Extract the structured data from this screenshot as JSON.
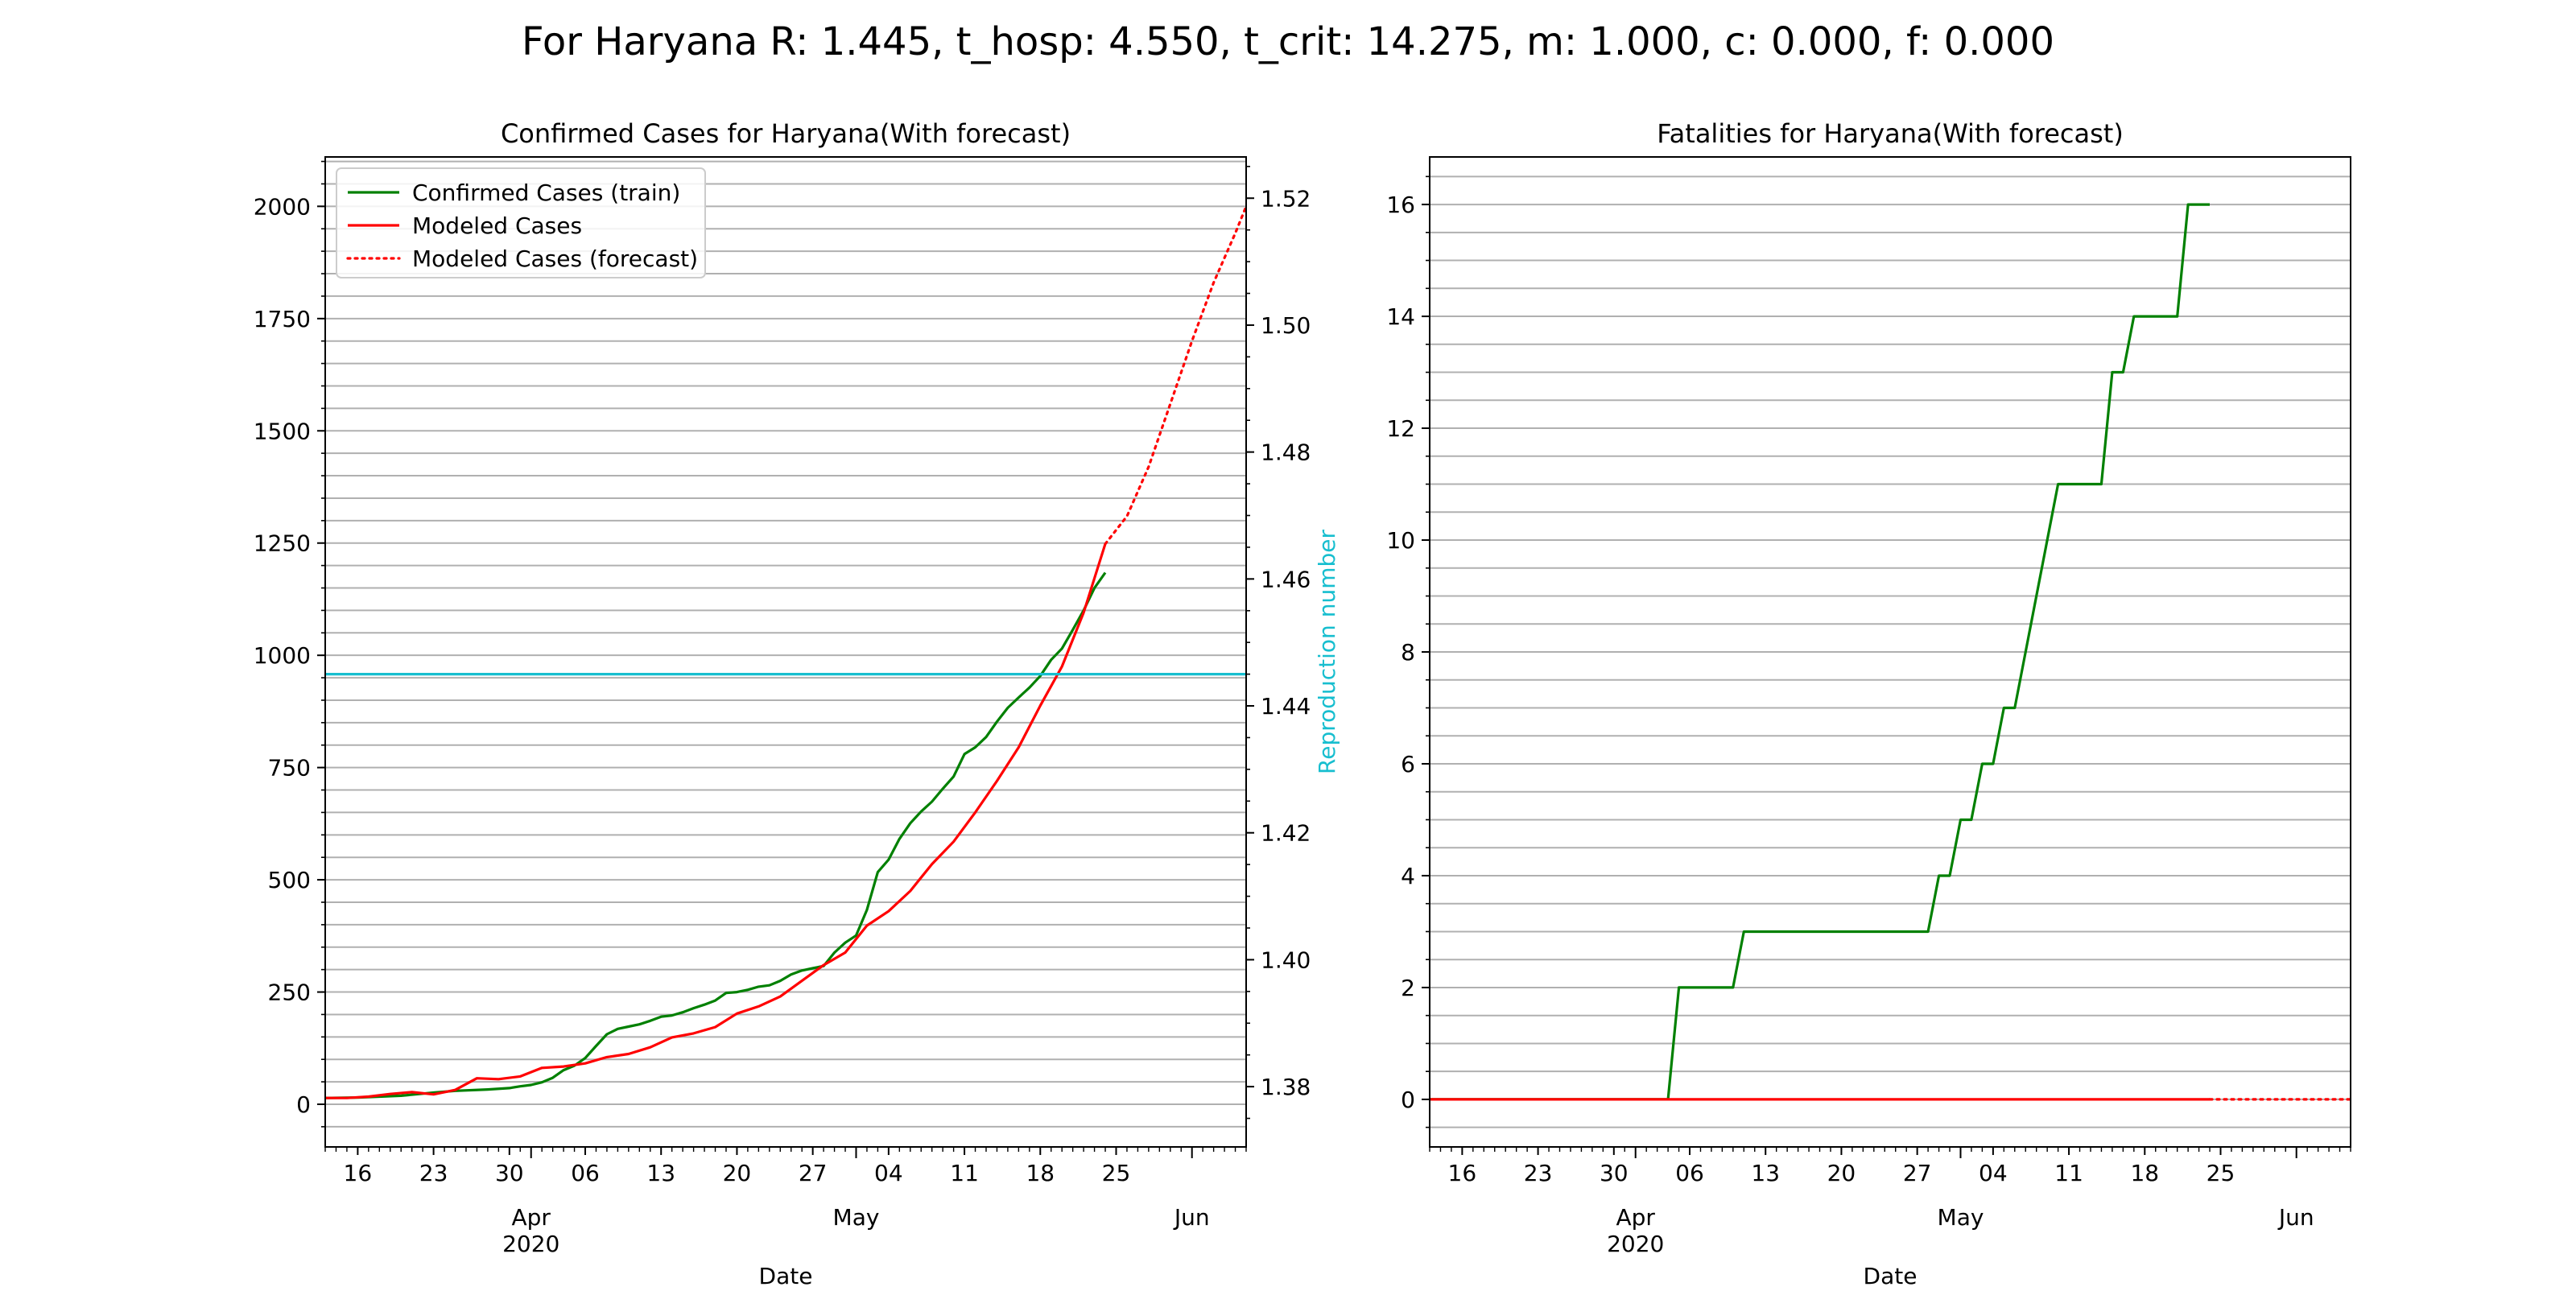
{
  "figure": {
    "suptitle": "For Haryana R: 1.445, t_hosp: 4.550, t_crit: 14.275, m: 1.000, c: 0.000, f: 0.000"
  },
  "colors": {
    "train": "#008000",
    "model": "#ff0000",
    "reproduction": "#17becf",
    "grid": "#b0b0b0",
    "axis": "#000000"
  },
  "chart_data": [
    {
      "type": "line",
      "title": "Confirmed Cases for Haryana(With forecast)",
      "xlabel": "Date",
      "ylabel": "",
      "y2label": "Reproduction number",
      "xlim": [
        "2020-03-13",
        "2020-06-06"
      ],
      "ylim": [
        -95,
        2110
      ],
      "y2lim": [
        1.3705,
        1.5265
      ],
      "x_ticks_major": [
        {
          "date": "2020-04-01",
          "label": "Apr",
          "label2": "2020"
        },
        {
          "date": "2020-05-01",
          "label": "May",
          "label2": ""
        },
        {
          "date": "2020-06-01",
          "label": "Jun",
          "label2": ""
        }
      ],
      "x_ticks_minor": [
        {
          "date": "2020-03-16",
          "label": "16"
        },
        {
          "date": "2020-03-23",
          "label": "23"
        },
        {
          "date": "2020-03-30",
          "label": "30"
        },
        {
          "date": "2020-04-06",
          "label": "06"
        },
        {
          "date": "2020-04-13",
          "label": "13"
        },
        {
          "date": "2020-04-20",
          "label": "20"
        },
        {
          "date": "2020-04-27",
          "label": "27"
        },
        {
          "date": "2020-05-04",
          "label": "04"
        },
        {
          "date": "2020-05-11",
          "label": "11"
        },
        {
          "date": "2020-05-18",
          "label": "18"
        },
        {
          "date": "2020-05-25",
          "label": "25"
        }
      ],
      "y_ticks": [
        {
          "value": 0,
          "label": "0"
        },
        {
          "value": 250,
          "label": "250"
        },
        {
          "value": 500,
          "label": "500"
        },
        {
          "value": 750,
          "label": "750"
        },
        {
          "value": 1000,
          "label": "1000"
        },
        {
          "value": 1250,
          "label": "1250"
        },
        {
          "value": 1500,
          "label": "1500"
        },
        {
          "value": 1750,
          "label": "1750"
        },
        {
          "value": 2000,
          "label": "2000"
        }
      ],
      "y2_ticks": [
        {
          "value": 1.38,
          "label": "1.38"
        },
        {
          "value": 1.4,
          "label": "1.40"
        },
        {
          "value": 1.42,
          "label": "1.42"
        },
        {
          "value": 1.44,
          "label": "1.44"
        },
        {
          "value": 1.46,
          "label": "1.46"
        },
        {
          "value": 1.48,
          "label": "1.48"
        },
        {
          "value": 1.5,
          "label": "1.50"
        },
        {
          "value": 1.52,
          "label": "1.52"
        }
      ],
      "grid": "horizontal",
      "legend_position": "upper-left",
      "series": [
        {
          "name": "Confirmed Cases (train)",
          "style": "solid",
          "color": "#008000",
          "axis": "left",
          "x": [
            "2020-03-13",
            "2020-03-16",
            "2020-03-20",
            "2020-03-23",
            "2020-03-25",
            "2020-03-28",
            "2020-03-30",
            "2020-03-31",
            "2020-04-01",
            "2020-04-02",
            "2020-04-03",
            "2020-04-04",
            "2020-04-05",
            "2020-04-06",
            "2020-04-07",
            "2020-04-08",
            "2020-04-09",
            "2020-04-10",
            "2020-04-11",
            "2020-04-12",
            "2020-04-13",
            "2020-04-14",
            "2020-04-15",
            "2020-04-16",
            "2020-04-17",
            "2020-04-18",
            "2020-04-19",
            "2020-04-20",
            "2020-04-21",
            "2020-04-22",
            "2020-04-23",
            "2020-04-24",
            "2020-04-25",
            "2020-04-26",
            "2020-04-27",
            "2020-04-28",
            "2020-04-29",
            "2020-04-30",
            "2020-05-01",
            "2020-05-02",
            "2020-05-03",
            "2020-05-04",
            "2020-05-05",
            "2020-05-06",
            "2020-05-07",
            "2020-05-08",
            "2020-05-09",
            "2020-05-10",
            "2020-05-11",
            "2020-05-12",
            "2020-05-13",
            "2020-05-14",
            "2020-05-15",
            "2020-05-16",
            "2020-05-17",
            "2020-05-18",
            "2020-05-19",
            "2020-05-20",
            "2020-05-21",
            "2020-05-22",
            "2020-05-23",
            "2020-05-24"
          ],
          "values": [
            14,
            15,
            19,
            26,
            30,
            33,
            36,
            40,
            43,
            49,
            59,
            76,
            86,
            103,
            130,
            156,
            168,
            173,
            178,
            186,
            195,
            198,
            205,
            214,
            222,
            231,
            248,
            250,
            255,
            262,
            265,
            275,
            289,
            298,
            303,
            308,
            338,
            360,
            376,
            433,
            517,
            545,
            591,
            626,
            652,
            674,
            703,
            730,
            780,
            795,
            818,
            852,
            883,
            906,
            928,
            954,
            990,
            1015,
            1057,
            1100,
            1150,
            1184
          ]
        },
        {
          "name": "Modeled Cases",
          "style": "solid",
          "color": "#ff0000",
          "axis": "left",
          "x": [
            "2020-03-13",
            "2020-03-15",
            "2020-03-17",
            "2020-03-19",
            "2020-03-21",
            "2020-03-23",
            "2020-03-25",
            "2020-03-27",
            "2020-03-29",
            "2020-03-31",
            "2020-04-02",
            "2020-04-04",
            "2020-04-06",
            "2020-04-08",
            "2020-04-10",
            "2020-04-12",
            "2020-04-14",
            "2020-04-16",
            "2020-04-18",
            "2020-04-20",
            "2020-04-22",
            "2020-04-24",
            "2020-04-26",
            "2020-04-28",
            "2020-04-30",
            "2020-05-02",
            "2020-05-04",
            "2020-05-06",
            "2020-05-08",
            "2020-05-10",
            "2020-05-12",
            "2020-05-14",
            "2020-05-16",
            "2020-05-18",
            "2020-05-20",
            "2020-05-22",
            "2020-05-24"
          ],
          "values": [
            14,
            14,
            17,
            23,
            27,
            22,
            32,
            58,
            56,
            62,
            81,
            84,
            91,
            105,
            112,
            127,
            149,
            158,
            172,
            202,
            218,
            240,
            275,
            310,
            338,
            398,
            430,
            475,
            535,
            585,
            650,
            720,
            795,
            888,
            975,
            1095,
            1248
          ]
        },
        {
          "name": "Modeled Cases (forecast)",
          "style": "dotted",
          "color": "#ff0000",
          "axis": "left",
          "x": [
            "2020-05-24",
            "2020-05-26",
            "2020-05-28",
            "2020-05-30",
            "2020-06-01",
            "2020-06-03",
            "2020-06-05",
            "2020-06-06"
          ],
          "values": [
            1248,
            1310,
            1420,
            1560,
            1700,
            1830,
            1940,
            2000
          ]
        },
        {
          "name": "",
          "style": "solid",
          "color": "#17becf",
          "axis": "right",
          "x": [
            "2020-03-13",
            "2020-06-06"
          ],
          "values": [
            1.445,
            1.445
          ]
        }
      ],
      "legend": [
        {
          "label": "Confirmed Cases (train)",
          "color": "#008000",
          "style": "solid"
        },
        {
          "label": "Modeled Cases",
          "color": "#ff0000",
          "style": "solid"
        },
        {
          "label": "Modeled Cases (forecast)",
          "color": "#ff0000",
          "style": "dotted"
        }
      ]
    },
    {
      "type": "line",
      "title": "Fatalities for Haryana(With forecast)",
      "xlabel": "Date",
      "ylabel": "",
      "xlim": [
        "2020-03-13",
        "2020-06-06"
      ],
      "ylim": [
        -0.85,
        16.85
      ],
      "x_ticks_major": [
        {
          "date": "2020-04-01",
          "label": "Apr",
          "label2": "2020"
        },
        {
          "date": "2020-05-01",
          "label": "May",
          "label2": ""
        },
        {
          "date": "2020-06-01",
          "label": "Jun",
          "label2": ""
        }
      ],
      "x_ticks_minor": [
        {
          "date": "2020-03-16",
          "label": "16"
        },
        {
          "date": "2020-03-23",
          "label": "23"
        },
        {
          "date": "2020-03-30",
          "label": "30"
        },
        {
          "date": "2020-04-06",
          "label": "06"
        },
        {
          "date": "2020-04-13",
          "label": "13"
        },
        {
          "date": "2020-04-20",
          "label": "20"
        },
        {
          "date": "2020-04-27",
          "label": "27"
        },
        {
          "date": "2020-05-04",
          "label": "04"
        },
        {
          "date": "2020-05-11",
          "label": "11"
        },
        {
          "date": "2020-05-18",
          "label": "18"
        },
        {
          "date": "2020-05-25",
          "label": "25"
        }
      ],
      "y_ticks": [
        {
          "value": 0,
          "label": "0"
        },
        {
          "value": 2,
          "label": "2"
        },
        {
          "value": 4,
          "label": "4"
        },
        {
          "value": 6,
          "label": "6"
        },
        {
          "value": 8,
          "label": "8"
        },
        {
          "value": 10,
          "label": "10"
        },
        {
          "value": 12,
          "label": "12"
        },
        {
          "value": 14,
          "label": "14"
        },
        {
          "value": 16,
          "label": "16"
        }
      ],
      "grid": "horizontal",
      "series": [
        {
          "name": "",
          "style": "solid",
          "color": "#008000",
          "x": [
            "2020-03-13",
            "2020-04-04",
            "2020-04-05",
            "2020-04-10",
            "2020-04-11",
            "2020-04-28",
            "2020-04-29",
            "2020-04-30",
            "2020-05-01",
            "2020-05-02",
            "2020-05-03",
            "2020-05-04",
            "2020-05-05",
            "2020-05-06",
            "2020-05-10",
            "2020-05-14",
            "2020-05-15",
            "2020-05-16",
            "2020-05-17",
            "2020-05-21",
            "2020-05-22",
            "2020-05-24"
          ],
          "values": [
            0,
            0,
            2,
            2,
            3,
            3,
            4,
            4,
            5,
            5,
            6,
            6,
            7,
            7,
            11,
            11,
            13,
            13,
            14,
            14,
            16,
            16
          ]
        },
        {
          "name": "",
          "style": "solid",
          "color": "#ff0000",
          "x": [
            "2020-03-13",
            "2020-05-24"
          ],
          "values": [
            0,
            0
          ]
        },
        {
          "name": "",
          "style": "dotted",
          "color": "#ff0000",
          "x": [
            "2020-05-24",
            "2020-06-06"
          ],
          "values": [
            0,
            0
          ]
        }
      ]
    }
  ]
}
